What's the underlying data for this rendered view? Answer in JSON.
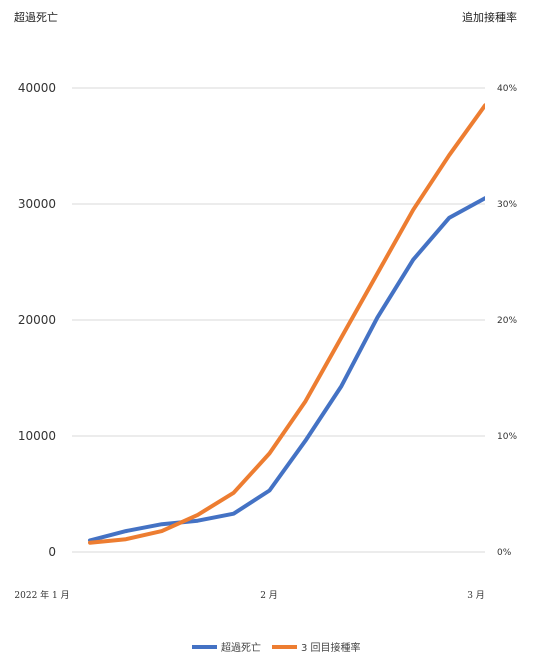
{
  "chart_data": {
    "type": "line",
    "title": "",
    "ylabel_left": "超過死亡",
    "ylabel_right": "追加接種率",
    "x_ticks": [
      "2022 年 1 月",
      "2 月",
      "3 月"
    ],
    "ylim_left": [
      0,
      40000
    ],
    "yticks_left": [
      "0",
      "10000",
      "20000",
      "30000",
      "40000"
    ],
    "ylim_right": [
      0,
      40
    ],
    "yticks_right": [
      "0%",
      "10%",
      "20%",
      "30%",
      "40%"
    ],
    "grid": true,
    "legend_position": "bottom",
    "x_positions": [
      0,
      0.1,
      0.2,
      0.3,
      0.4,
      0.5,
      0.6,
      0.7,
      0.8,
      0.9,
      1.0,
      1.1
    ],
    "series": [
      {
        "name": "超過死亡",
        "axis": "left",
        "color": "#4472c4",
        "values": [
          1000,
          1800,
          2400,
          2700,
          3300,
          5300,
          9600,
          14300,
          20200,
          25200,
          28800,
          30500
        ]
      },
      {
        "name": "3 回目接種率",
        "axis": "right",
        "color": "#ed7d31",
        "values": [
          0.8,
          1.1,
          1.8,
          3.2,
          5.1,
          8.5,
          13.0,
          18.5,
          24.0,
          29.5,
          34.2,
          38.5
        ]
      }
    ]
  }
}
